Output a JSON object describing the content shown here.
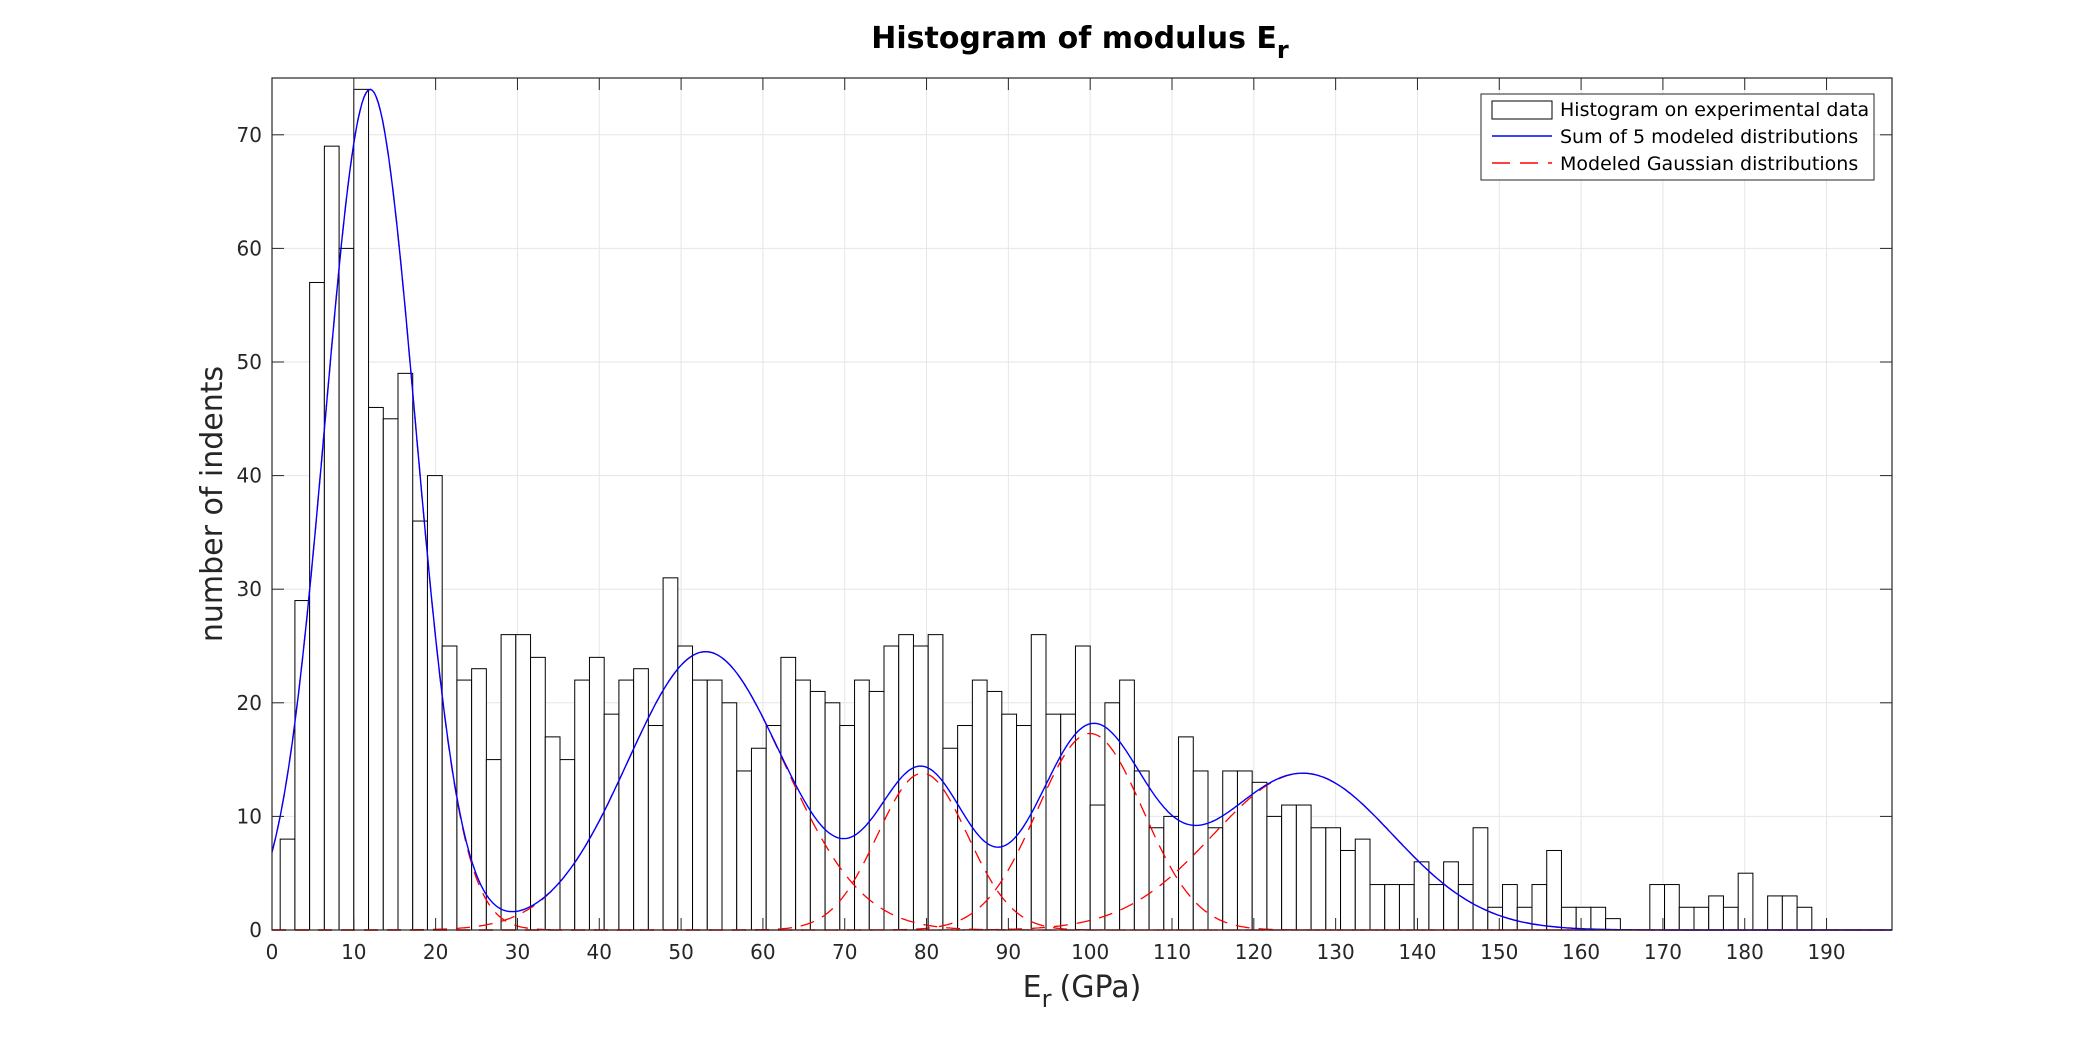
{
  "chart_data": {
    "type": "bar",
    "title": "Histogram of modulus E",
    "title_subscript": "r",
    "xlabel": "E",
    "xlabel_subscript": "r",
    "xlabel_unit": "(GPa)",
    "ylabel": "number of indents",
    "xlim": [
      0,
      198
    ],
    "ylim": [
      0,
      75
    ],
    "xticks": [
      0,
      10,
      20,
      30,
      40,
      50,
      60,
      70,
      80,
      90,
      100,
      110,
      120,
      130,
      140,
      150,
      160,
      170,
      180,
      190
    ],
    "yticks": [
      0,
      10,
      20,
      30,
      40,
      50,
      60,
      70
    ],
    "grid": true,
    "legend_position": "top-right",
    "histogram": {
      "name": "Histogram on experimental data",
      "bin_start": 1,
      "bin_width": 1.8,
      "counts": [
        8,
        29,
        57,
        69,
        60,
        74,
        46,
        45,
        49,
        36,
        40,
        25,
        22,
        23,
        15,
        26,
        26,
        24,
        17,
        15,
        22,
        24,
        19,
        22,
        23,
        18,
        31,
        25,
        22,
        22,
        20,
        14,
        16,
        18,
        24,
        22,
        21,
        20,
        18,
        22,
        21,
        25,
        26,
        25,
        26,
        16,
        18,
        22,
        21,
        19,
        18,
        26,
        19,
        19,
        25,
        11,
        20,
        22,
        14,
        9,
        10,
        17,
        14,
        9,
        14,
        14,
        13,
        10,
        11,
        11,
        9,
        9,
        7,
        8,
        4,
        4,
        4,
        6,
        4,
        6,
        4,
        9,
        2,
        4,
        2,
        4,
        7,
        2,
        2,
        2,
        1,
        0,
        0,
        4,
        4,
        2,
        2,
        3,
        2,
        5,
        0,
        3,
        3,
        2
      ]
    },
    "sum_curve": {
      "name": "Sum of 5 modeled distributions",
      "color": "#0000ff"
    },
    "gaussians": {
      "name": "Modeled Gaussian distributions",
      "color": "#ff0000",
      "components": [
        {
          "mean": 12,
          "sigma": 5.5,
          "peak": 74
        },
        {
          "mean": 53,
          "sigma": 9.5,
          "peak": 24.5
        },
        {
          "mean": 79.5,
          "sigma": 5.5,
          "peak": 13.8
        },
        {
          "mean": 100,
          "sigma": 6.5,
          "peak": 17.3
        },
        {
          "mean": 126,
          "sigma": 11,
          "peak": 13.8
        }
      ]
    },
    "colors": {
      "bar_edge": "#000000",
      "bar_fill": "#ffffff",
      "grid": "#e6e6e6",
      "axis": "#262626"
    }
  }
}
